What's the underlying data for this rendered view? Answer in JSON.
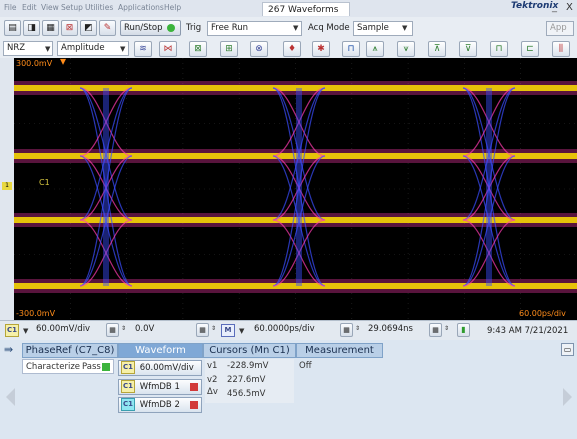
{
  "menu": [
    "File",
    "Edit",
    "View",
    "Setup",
    "Utilities",
    "Applications",
    "Help"
  ],
  "waveform_count": "267 Waveforms",
  "brand": "Tektronix",
  "window_controls": [
    "_",
    "X"
  ],
  "toolbar": {
    "run_stop": "Run/Stop",
    "trig_label": "Trig",
    "trig_mode": "Free Run",
    "acq_label": "Acq Mode",
    "acq_mode": "Sample",
    "app_label": "App",
    "nrz": "NRZ",
    "amplitude": "Amplitude"
  },
  "scope": {
    "top_label": "300.0mV",
    "bottom_label": "-300.0mV",
    "right_label": "60.00ps/div",
    "channel_label": "C1",
    "eye_count": 3
  },
  "controls": {
    "channel": "C1",
    "vscale": "60.00mV/div",
    "offset": "0.0V",
    "math": "M",
    "hscale": "60.0000ps/div",
    "position": "29.0694ns",
    "datetime": "9:43 AM 7/21/2021"
  },
  "panel": {
    "tabs": [
      "PhaseRef (C7_C8)",
      "Waveform",
      "Cursors (Mn C1)",
      "Measurement"
    ],
    "characterize": "Characterize",
    "pass": "Pass",
    "wf_buttons": [
      "60.00mV/div",
      "WfmDB 1",
      "WfmDB 2"
    ],
    "cursors": [
      {
        "label": "v1",
        "value": "-228.9mV"
      },
      {
        "label": "v2",
        "value": "227.6mV"
      },
      {
        "label": "Δv",
        "value": "456.5mV"
      }
    ],
    "measurement": "Off"
  },
  "colors": {
    "accent": "#e8d840",
    "trace_hot": "#ffe000",
    "trace_mid": "#ff3ab0",
    "trace_cool": "#3a4dff"
  }
}
